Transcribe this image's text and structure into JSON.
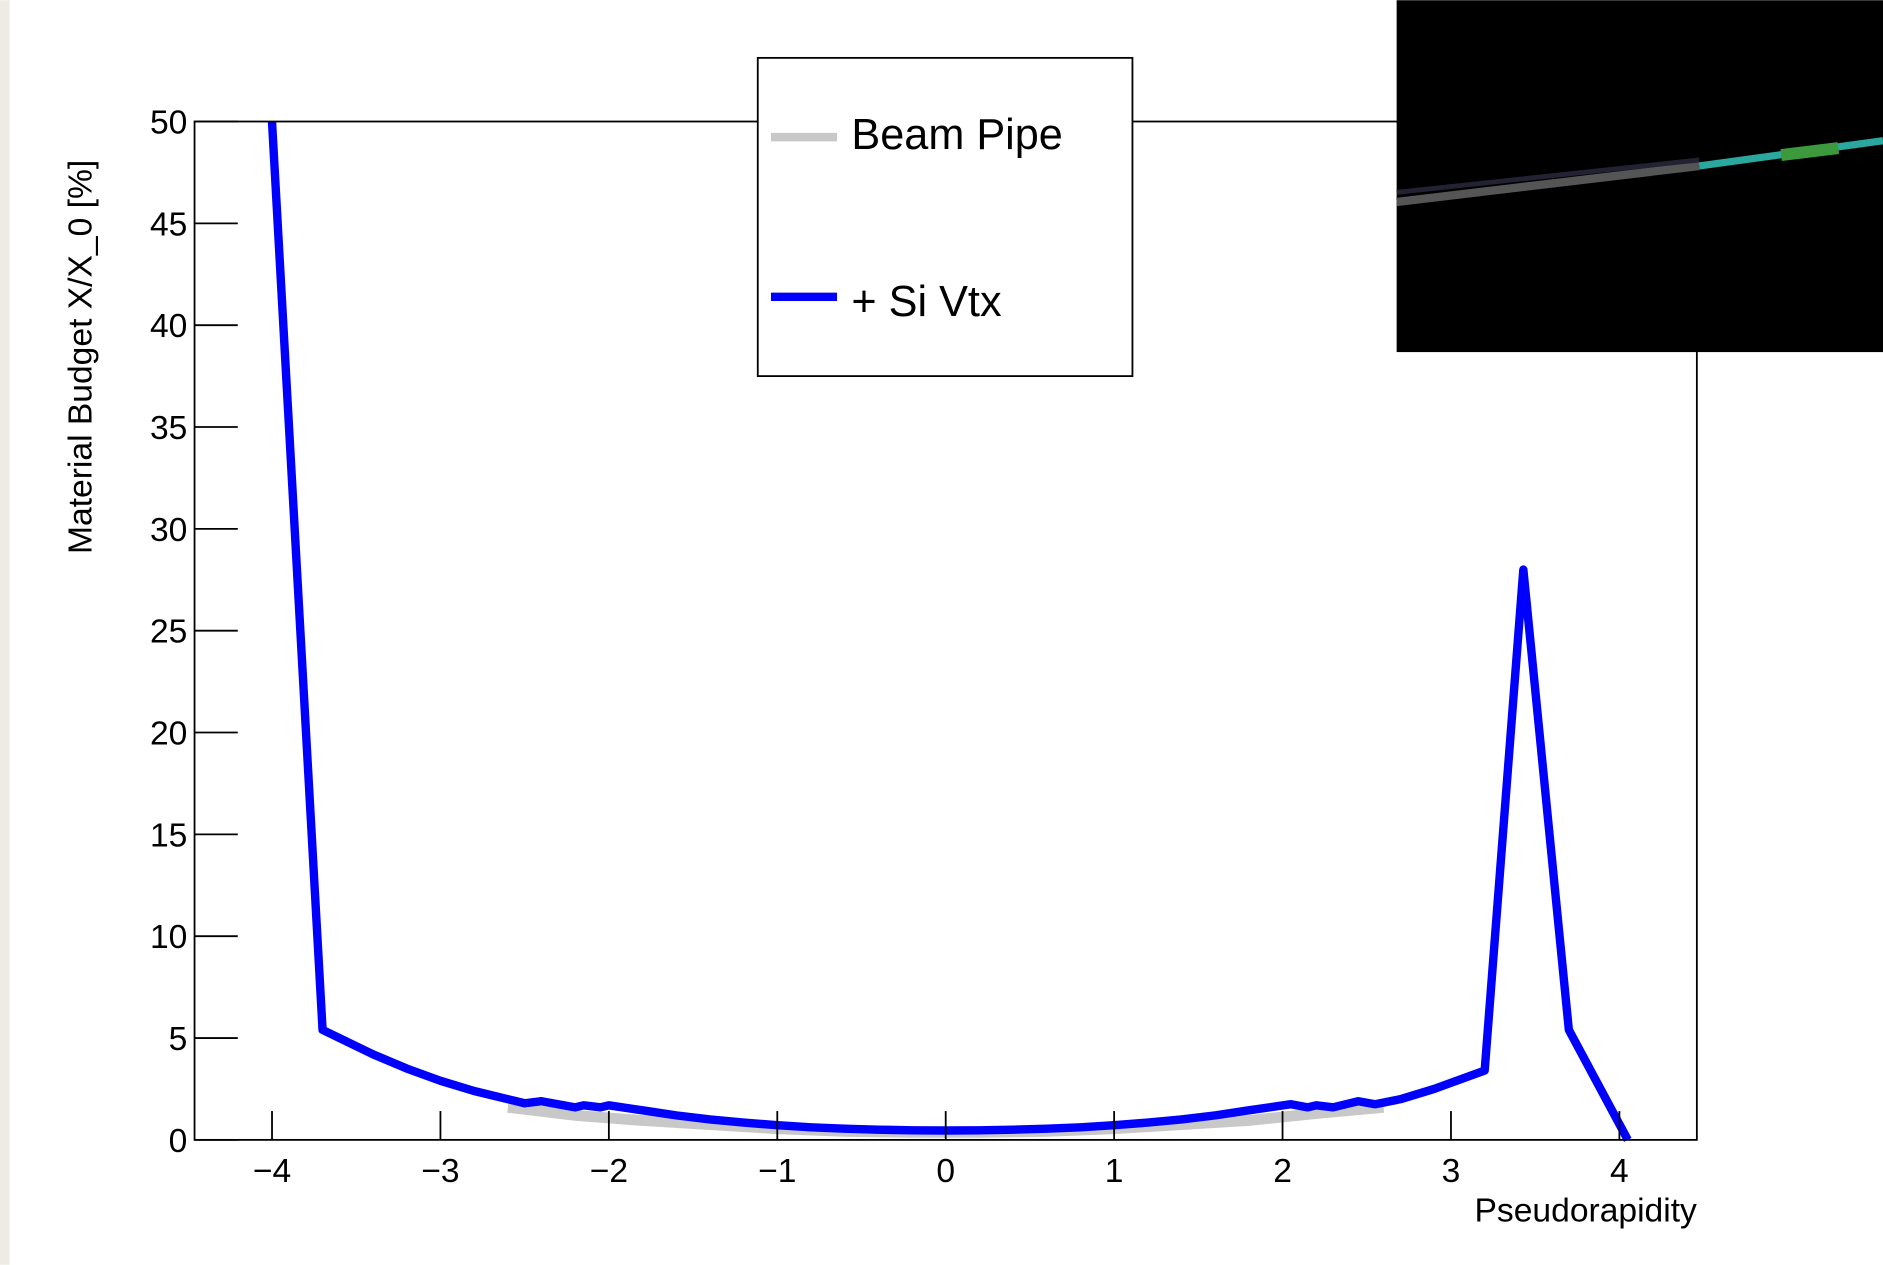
{
  "chart_data": {
    "type": "line",
    "x_label": "Pseudorapidity",
    "y_label": "Material Budget X/X_0 [%]",
    "xlim": [
      -4.46,
      4.46
    ],
    "ylim": [
      0,
      50
    ],
    "xticks": [
      {
        "value": -4,
        "label": "−4"
      },
      {
        "value": -3,
        "label": "−3"
      },
      {
        "value": -2,
        "label": "−2"
      },
      {
        "value": -1,
        "label": "−1"
      },
      0,
      1,
      2,
      3,
      4
    ],
    "yticks": [
      0,
      5,
      10,
      15,
      20,
      25,
      30,
      35,
      40,
      45,
      50
    ],
    "series": [
      {
        "name": "Beam Pipe",
        "color": "#c8c8c8",
        "x": [
          -2.6,
          -2.2,
          -1.8,
          -1.4,
          -1.0,
          -0.6,
          -0.2,
          0.2,
          0.6,
          1.0,
          1.4,
          1.8,
          2.2,
          2.6
        ],
        "values": [
          1.6,
          1.2,
          0.95,
          0.75,
          0.55,
          0.42,
          0.37,
          0.37,
          0.42,
          0.55,
          0.75,
          0.95,
          1.3,
          1.6
        ]
      },
      {
        "name": "+ Si Vtx",
        "color": "#0000ff",
        "x": [
          -4.0,
          -3.7,
          -3.4,
          -3.2,
          -3.0,
          -2.8,
          -2.6,
          -2.5,
          -2.4,
          -2.2,
          -2.15,
          -2.05,
          -2.0,
          -1.8,
          -1.6,
          -1.4,
          -1.2,
          -1.0,
          -0.8,
          -0.6,
          -0.4,
          -0.2,
          0,
          0.2,
          0.4,
          0.6,
          0.8,
          1.0,
          1.2,
          1.4,
          1.6,
          1.8,
          2.05,
          2.15,
          2.2,
          2.3,
          2.45,
          2.55,
          2.7,
          2.9,
          3.0,
          3.2,
          3.43,
          3.7,
          4.05
        ],
        "values": [
          50,
          5.4,
          4.2,
          3.5,
          2.9,
          2.4,
          2.0,
          1.8,
          1.9,
          1.6,
          1.7,
          1.6,
          1.7,
          1.45,
          1.2,
          1.0,
          0.85,
          0.72,
          0.62,
          0.55,
          0.5,
          0.47,
          0.46,
          0.47,
          0.5,
          0.55,
          0.62,
          0.72,
          0.85,
          1.0,
          1.2,
          1.45,
          1.75,
          1.6,
          1.7,
          1.6,
          1.9,
          1.75,
          2.0,
          2.5,
          2.8,
          3.4,
          28,
          5.4,
          0
        ]
      }
    ]
  }
}
